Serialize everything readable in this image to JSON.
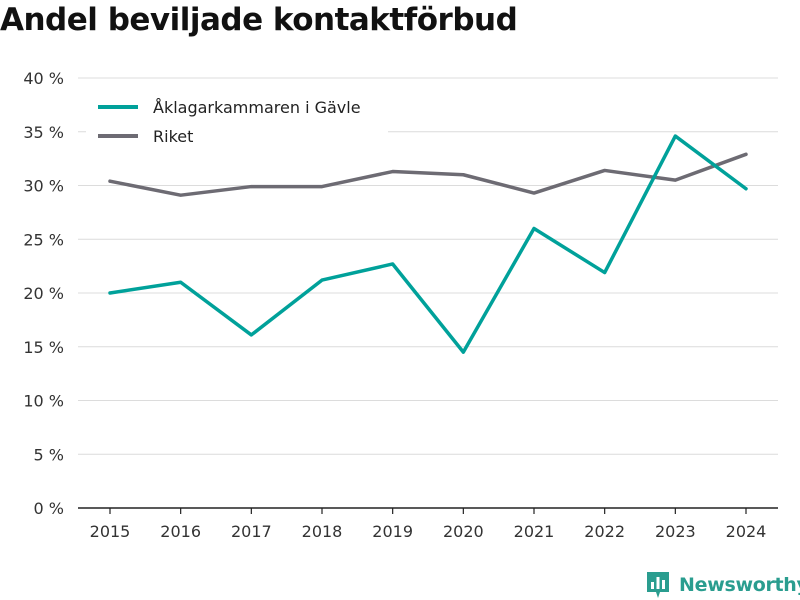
{
  "chart_data": {
    "type": "line",
    "title": "Andel beviljade kontaktförbud",
    "x": [
      "2015",
      "2016",
      "2017",
      "2018",
      "2019",
      "2020",
      "2021",
      "2022",
      "2023",
      "2024"
    ],
    "series": [
      {
        "name": "Åklagarkammaren i Gävle",
        "color": "#00a19a",
        "values": [
          20.0,
          21.0,
          16.1,
          21.2,
          22.7,
          14.5,
          26.0,
          21.9,
          34.6,
          29.7
        ]
      },
      {
        "name": "Riket",
        "color": "#6d6b73",
        "values": [
          30.4,
          29.1,
          29.9,
          29.9,
          31.3,
          31.0,
          29.3,
          31.4,
          30.5,
          32.9
        ]
      }
    ],
    "ylim": [
      0,
      40
    ],
    "yticks": [
      "0 %",
      "5 %",
      "10 %",
      "15 %",
      "20 %",
      "25 %",
      "30 %",
      "35 %",
      "40 %"
    ],
    "grid": true,
    "legend": "top-left",
    "xlabel": "",
    "ylabel": ""
  },
  "brand": {
    "name": "Newsworthy",
    "logo_icon": "bar-chart-icon",
    "color": "#2a9d8f"
  }
}
